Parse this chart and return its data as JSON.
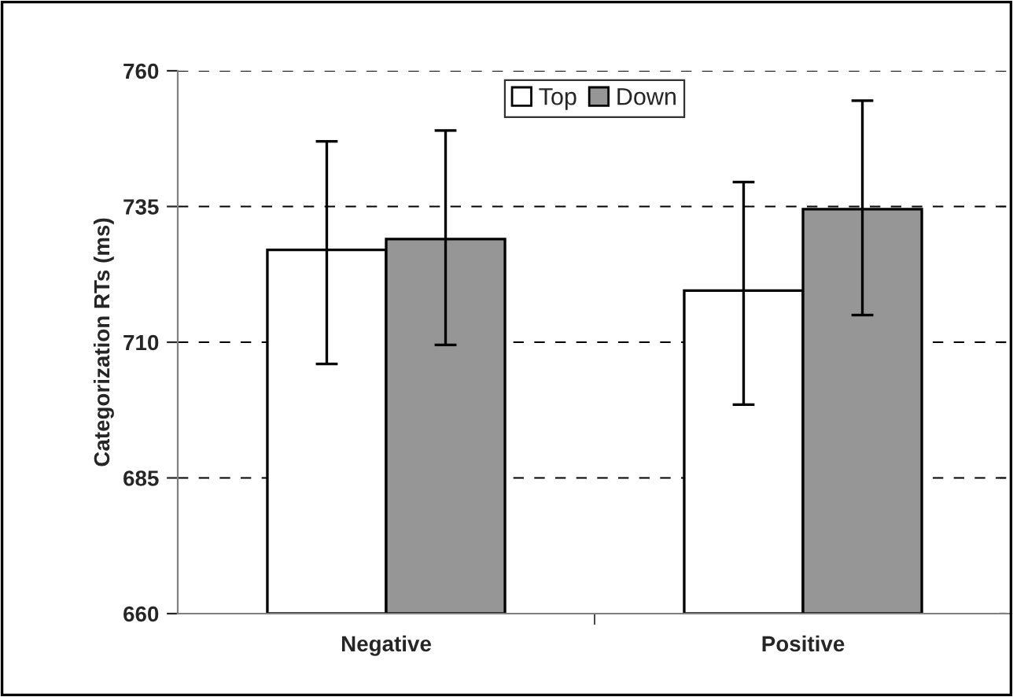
{
  "chart_data": {
    "type": "bar",
    "ylabel": "Categorization RTs (ms)",
    "categories": [
      "Negative",
      "Positive"
    ],
    "series": [
      {
        "name": "Top",
        "color": "#ffffff",
        "values": [
          727,
          719.5
        ],
        "errors": [
          [
            706,
            747
          ],
          [
            698.5,
            739.5
          ]
        ]
      },
      {
        "name": "Down",
        "color": "#969696",
        "values": [
          729,
          734.5
        ],
        "errors": [
          [
            709.5,
            749
          ],
          [
            715,
            754.5
          ]
        ]
      }
    ],
    "ylim": [
      660,
      760
    ],
    "yticks": [
      660,
      685,
      710,
      735,
      760
    ],
    "grid": "y",
    "legend": "top"
  }
}
